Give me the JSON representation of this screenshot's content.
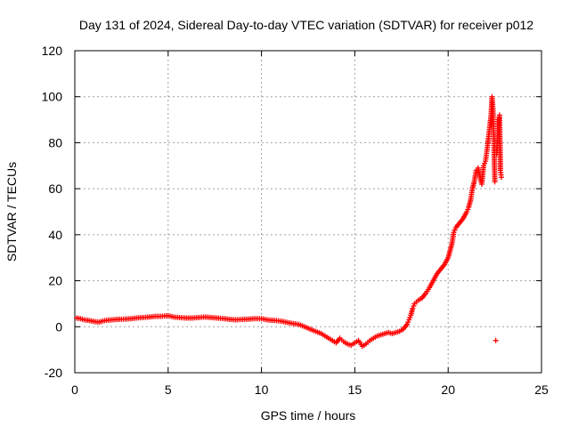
{
  "chart_data": {
    "type": "scatter",
    "title": "Day 131 of 2024, Sidereal Day-to-day VTEC variation (SDTVAR) for receiver p012",
    "xlabel": "GPS time / hours",
    "ylabel": "SDTVAR / TECUs",
    "xlim": [
      0,
      25
    ],
    "ylim": [
      -20,
      120
    ],
    "x_ticks": [
      0,
      5,
      10,
      15,
      20,
      25
    ],
    "y_ticks": [
      -20,
      0,
      20,
      40,
      60,
      80,
      100,
      120
    ],
    "grid": true,
    "marker": "+",
    "series": [
      {
        "name": "SDTVAR",
        "color": "#ff0000",
        "points": [
          [
            0.1,
            3.8
          ],
          [
            0.3,
            3.5
          ],
          [
            0.5,
            3.0
          ],
          [
            0.7,
            2.8
          ],
          [
            0.9,
            2.5
          ],
          [
            1.1,
            2.2
          ],
          [
            1.3,
            2.0
          ],
          [
            1.5,
            2.5
          ],
          [
            1.7,
            2.8
          ],
          [
            2.0,
            3.0
          ],
          [
            2.3,
            3.2
          ],
          [
            2.6,
            3.3
          ],
          [
            3.0,
            3.5
          ],
          [
            3.3,
            3.8
          ],
          [
            3.6,
            4.0
          ],
          [
            4.0,
            4.2
          ],
          [
            4.3,
            4.5
          ],
          [
            4.6,
            4.5
          ],
          [
            5.0,
            4.8
          ],
          [
            5.3,
            4.2
          ],
          [
            5.6,
            4.0
          ],
          [
            6.0,
            3.8
          ],
          [
            6.3,
            3.8
          ],
          [
            6.6,
            4.0
          ],
          [
            7.0,
            4.2
          ],
          [
            7.3,
            4.0
          ],
          [
            7.6,
            3.8
          ],
          [
            8.0,
            3.5
          ],
          [
            8.3,
            3.2
          ],
          [
            8.6,
            3.0
          ],
          [
            9.0,
            3.2
          ],
          [
            9.3,
            3.3
          ],
          [
            9.6,
            3.5
          ],
          [
            10.0,
            3.5
          ],
          [
            10.3,
            3.0
          ],
          [
            10.6,
            2.8
          ],
          [
            11.0,
            2.5
          ],
          [
            11.3,
            2.0
          ],
          [
            11.6,
            1.5
          ],
          [
            12.0,
            1.0
          ],
          [
            12.3,
            0.0
          ],
          [
            12.6,
            -1.0
          ],
          [
            12.9,
            -2.0
          ],
          [
            13.2,
            -3.0
          ],
          [
            13.5,
            -4.5
          ],
          [
            13.8,
            -6.0
          ],
          [
            14.0,
            -7.0
          ],
          [
            14.2,
            -5.0
          ],
          [
            14.4,
            -6.5
          ],
          [
            14.6,
            -7.5
          ],
          [
            14.8,
            -8.0
          ],
          [
            15.0,
            -7.0
          ],
          [
            15.2,
            -6.0
          ],
          [
            15.4,
            -8.5
          ],
          [
            15.6,
            -7.5
          ],
          [
            15.8,
            -6.0
          ],
          [
            16.0,
            -5.0
          ],
          [
            16.2,
            -4.0
          ],
          [
            16.4,
            -3.5
          ],
          [
            16.6,
            -3.0
          ],
          [
            16.8,
            -2.5
          ],
          [
            17.0,
            -3.0
          ],
          [
            17.2,
            -2.5
          ],
          [
            17.4,
            -2.0
          ],
          [
            17.6,
            -1.0
          ],
          [
            17.8,
            1.0
          ],
          [
            17.9,
            3.0
          ],
          [
            18.0,
            5.0
          ],
          [
            18.1,
            8.0
          ],
          [
            18.2,
            10.0
          ],
          [
            18.4,
            11.5
          ],
          [
            18.6,
            12.5
          ],
          [
            18.8,
            14.5
          ],
          [
            19.0,
            17.0
          ],
          [
            19.2,
            20.0
          ],
          [
            19.4,
            23.0
          ],
          [
            19.6,
            25.0
          ],
          [
            19.8,
            27.0
          ],
          [
            20.0,
            30.0
          ],
          [
            20.1,
            33.0
          ],
          [
            20.2,
            36.0
          ],
          [
            20.3,
            41.0
          ],
          [
            20.4,
            43.0
          ],
          [
            20.6,
            45.0
          ],
          [
            20.8,
            47.0
          ],
          [
            21.0,
            50.0
          ],
          [
            21.1,
            52.0
          ],
          [
            21.2,
            55.0
          ],
          [
            21.3,
            60.0
          ],
          [
            21.4,
            63.0
          ],
          [
            21.5,
            68.0
          ],
          [
            21.6,
            69.0
          ],
          [
            21.8,
            62.0
          ],
          [
            21.9,
            70.0
          ],
          [
            22.0,
            72.0
          ],
          [
            22.1,
            78.0
          ],
          [
            22.2,
            85.0
          ],
          [
            22.3,
            92.0
          ],
          [
            22.35,
            100.0
          ],
          [
            22.4,
            95.0
          ],
          [
            22.45,
            82.0
          ],
          [
            22.5,
            63.0
          ],
          [
            22.55,
            -6.0
          ],
          [
            22.6,
            75.0
          ],
          [
            22.7,
            90.0
          ],
          [
            22.75,
            92.0
          ],
          [
            22.8,
            68.0
          ],
          [
            22.85,
            65.0
          ]
        ]
      }
    ]
  }
}
